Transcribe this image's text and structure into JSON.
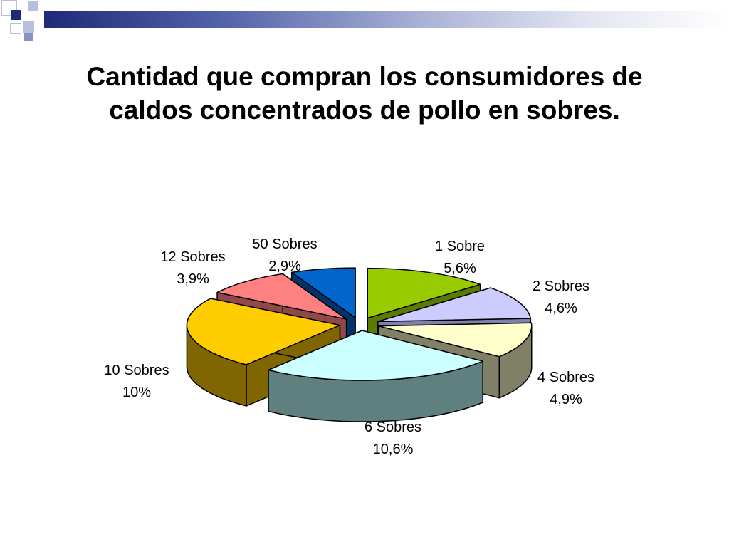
{
  "slide": {
    "title_lines": [
      "Cantidad que compran los consumidores de",
      "caldos concentrados de pollo en sobres."
    ],
    "colors": {
      "banner_dark": "#1f2a78",
      "banner_light": "#a9b1d6"
    }
  },
  "chart_data": {
    "type": "pie",
    "style": "3d-exploded",
    "categories": [
      "1 Sobre",
      "2 Sobres",
      "4 Sobres",
      "6 Sobres",
      "10 Sobres",
      "12 Sobres",
      "50 Sobres"
    ],
    "values": [
      5.6,
      4.6,
      4.9,
      10.6,
      10,
      3.9,
      2.9
    ],
    "value_labels": [
      "5,6%",
      "4,6%",
      "4,9%",
      "10,6%",
      "10%",
      "3,9%",
      "2,9%"
    ],
    "colors": [
      "#99cc00",
      "#ccccff",
      "#ffffcc",
      "#ccffff",
      "#ffcc00",
      "#ff8080",
      "#0066cc"
    ],
    "side_colors": [
      "#5a7a00",
      "#8080b0",
      "#808066",
      "#608080",
      "#806600",
      "#904848",
      "#00336a"
    ],
    "legend": "none",
    "data_labels": "category and percent"
  }
}
